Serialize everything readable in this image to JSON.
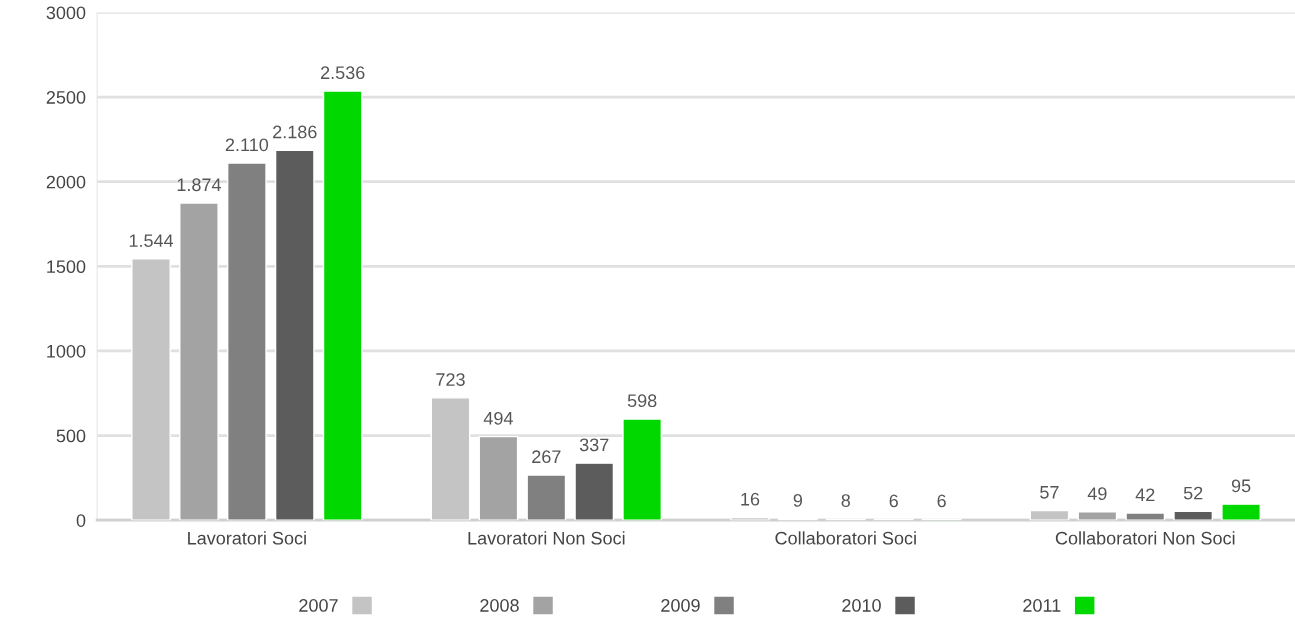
{
  "chart_data": {
    "type": "bar",
    "categories": [
      "Lavoratori Soci",
      "Lavoratori Non Soci",
      "Collaboratori Soci",
      "Collaboratori Non Soci"
    ],
    "series": [
      {
        "name": "2007",
        "color": "#c4c4c4",
        "values": [
          1544,
          723,
          16,
          57
        ],
        "value_labels": [
          "1.544",
          "723",
          "16",
          "57"
        ]
      },
      {
        "name": "2008",
        "color": "#a3a3a3",
        "values": [
          1874,
          494,
          9,
          49
        ],
        "value_labels": [
          "1.874",
          "494",
          "9",
          "49"
        ]
      },
      {
        "name": "2009",
        "color": "#808080",
        "values": [
          2110,
          267,
          8,
          42
        ],
        "value_labels": [
          "2.110",
          "267",
          "8",
          "42"
        ]
      },
      {
        "name": "2010",
        "color": "#5c5c5c",
        "values": [
          2186,
          337,
          6,
          52
        ],
        "value_labels": [
          "2.186",
          "337",
          "6",
          "52"
        ]
      },
      {
        "name": "2011",
        "color": "#00d800",
        "values": [
          2536,
          598,
          6,
          95
        ],
        "value_labels": [
          "2.536",
          "598",
          "6",
          "95"
        ]
      }
    ],
    "ylim": [
      0,
      3000
    ],
    "yticks": [
      0,
      500,
      1000,
      1500,
      2000,
      2500,
      3000
    ],
    "grid": "y",
    "legend": "bottom"
  }
}
